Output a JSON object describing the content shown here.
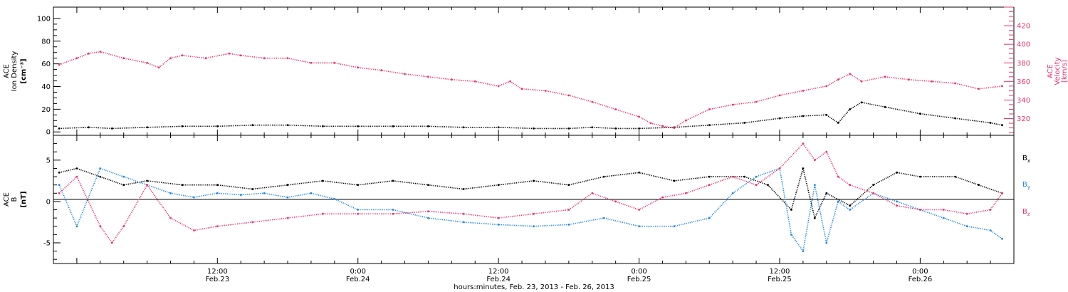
{
  "panel_density": {
    "ylabel_lines": [
      "ACE",
      "Ion Density"
    ],
    "yunit": "[cm⁻³]",
    "yticks": [
      "0",
      "20",
      "40",
      "60",
      "80",
      "100"
    ]
  },
  "panel_velocity": {
    "ylabel_lines": [
      "ACE",
      "Velocity"
    ],
    "yunit": "[km/s]",
    "yticks": [
      "320",
      "340",
      "360",
      "380",
      "400",
      "420"
    ]
  },
  "panel_b": {
    "ylabel_lines": [
      "ACE",
      "B"
    ],
    "yunit": "[nT]",
    "yticks": [
      "-5",
      "0",
      "5"
    ]
  },
  "xaxis": {
    "tick_times": [
      "12:00",
      "0:00",
      "12:00",
      "0:00",
      "12:00",
      "0:00"
    ],
    "tick_dates": [
      "Feb.23",
      "Feb.24",
      "Feb.24",
      "Feb.25",
      "Feb.25",
      "Feb.26"
    ],
    "title": "hours:minutes, Feb. 23, 2013 - Feb. 26, 2013"
  },
  "legend": [
    {
      "label": "B",
      "sub": "x",
      "color": "#000000"
    },
    {
      "label": "B",
      "sub": "y",
      "color": "#1e88e5"
    },
    {
      "label": "B",
      "sub": "z",
      "color": "#e8336b"
    }
  ],
  "colors": {
    "density": "#000000",
    "velocity": "#e8336b",
    "bx": "#000000",
    "by": "#1e88e5",
    "bz": "#e8336b"
  },
  "chart_data": [
    {
      "type": "scatter",
      "x_unit": "hours from 2013-02-23 00:00 UT",
      "xlim": [
        -2,
        80
      ],
      "series": [
        {
          "role": "ion density (left axis, cm^-3)",
          "color": "#000000",
          "ylim": [
            -3,
            110
          ],
          "points": [
            [
              -1.5,
              3
            ],
            [
              1,
              4
            ],
            [
              3,
              3
            ],
            [
              6,
              4
            ],
            [
              9,
              5
            ],
            [
              12,
              5
            ],
            [
              15,
              6
            ],
            [
              18,
              6
            ],
            [
              21,
              5
            ],
            [
              24,
              5
            ],
            [
              27,
              5
            ],
            [
              30,
              5
            ],
            [
              33,
              4
            ],
            [
              36,
              4
            ],
            [
              39,
              3
            ],
            [
              42,
              3
            ],
            [
              44,
              4
            ],
            [
              46,
              3
            ],
            [
              48,
              3
            ],
            [
              51,
              4
            ],
            [
              54,
              6
            ],
            [
              57,
              8
            ],
            [
              60,
              12
            ],
            [
              62,
              14
            ],
            [
              64,
              15
            ],
            [
              65,
              8
            ],
            [
              66,
              20
            ],
            [
              67,
              26
            ],
            [
              69,
              22
            ],
            [
              72,
              16
            ],
            [
              75,
              12
            ],
            [
              78,
              8
            ],
            [
              79,
              6
            ]
          ]
        },
        {
          "role": "ion velocity (right axis, km/s)",
          "color": "#e8336b",
          "ylim": [
            302,
            440
          ],
          "points": [
            [
              -1.5,
              378
            ],
            [
              0,
              385
            ],
            [
              1,
              390
            ],
            [
              2,
              392
            ],
            [
              4,
              385
            ],
            [
              6,
              380
            ],
            [
              7,
              375
            ],
            [
              8,
              385
            ],
            [
              9,
              388
            ],
            [
              11,
              385
            ],
            [
              13,
              390
            ],
            [
              14,
              388
            ],
            [
              16,
              385
            ],
            [
              18,
              385
            ],
            [
              20,
              380
            ],
            [
              22,
              380
            ],
            [
              24,
              375
            ],
            [
              26,
              372
            ],
            [
              28,
              368
            ],
            [
              30,
              365
            ],
            [
              32,
              362
            ],
            [
              34,
              360
            ],
            [
              36,
              355
            ],
            [
              37,
              360
            ],
            [
              38,
              352
            ],
            [
              40,
              350
            ],
            [
              42,
              345
            ],
            [
              44,
              338
            ],
            [
              46,
              330
            ],
            [
              48,
              322
            ],
            [
              49,
              315
            ],
            [
              50,
              312
            ],
            [
              51,
              310
            ],
            [
              52,
              318
            ],
            [
              54,
              330
            ],
            [
              56,
              335
            ],
            [
              58,
              338
            ],
            [
              60,
              345
            ],
            [
              62,
              350
            ],
            [
              64,
              355
            ],
            [
              65,
              362
            ],
            [
              66,
              368
            ],
            [
              67,
              360
            ],
            [
              69,
              365
            ],
            [
              71,
              362
            ],
            [
              73,
              360
            ],
            [
              75,
              358
            ],
            [
              77,
              352
            ],
            [
              79,
              355
            ]
          ]
        }
      ]
    },
    {
      "type": "scatter",
      "x_unit": "hours from 2013-02-23 00:00 UT",
      "xlim": [
        -2,
        80
      ],
      "ylim": [
        -7.5,
        8
      ],
      "y_unit": "nT",
      "series": [
        {
          "name": "Bx",
          "color": "#000000",
          "points": [
            [
              -1.5,
              3.5
            ],
            [
              0,
              4
            ],
            [
              2,
              3
            ],
            [
              4,
              2
            ],
            [
              6,
              2.5
            ],
            [
              9,
              2
            ],
            [
              12,
              2
            ],
            [
              15,
              1.5
            ],
            [
              18,
              2
            ],
            [
              21,
              2.5
            ],
            [
              24,
              2
            ],
            [
              27,
              2.5
            ],
            [
              30,
              2
            ],
            [
              33,
              1.5
            ],
            [
              36,
              2
            ],
            [
              39,
              2.5
            ],
            [
              42,
              2
            ],
            [
              45,
              3
            ],
            [
              48,
              3.5
            ],
            [
              51,
              2.5
            ],
            [
              54,
              3
            ],
            [
              57,
              3
            ],
            [
              59,
              2
            ],
            [
              61,
              -1
            ],
            [
              62,
              4
            ],
            [
              63,
              -2
            ],
            [
              64,
              1
            ],
            [
              66,
              -0.5
            ],
            [
              68,
              2
            ],
            [
              70,
              3.5
            ],
            [
              72,
              3
            ],
            [
              75,
              3
            ],
            [
              77,
              2
            ],
            [
              79,
              1
            ]
          ]
        },
        {
          "name": "By",
          "color": "#1e88e5",
          "points": [
            [
              -1.5,
              2
            ],
            [
              0,
              -3
            ],
            [
              2,
              4
            ],
            [
              4,
              3
            ],
            [
              6,
              2
            ],
            [
              8,
              1
            ],
            [
              10,
              0.5
            ],
            [
              12,
              1
            ],
            [
              14,
              0.8
            ],
            [
              16,
              1
            ],
            [
              18,
              0.5
            ],
            [
              20,
              1
            ],
            [
              22,
              0.3
            ],
            [
              24,
              -1
            ],
            [
              27,
              -1
            ],
            [
              30,
              -2
            ],
            [
              33,
              -2.5
            ],
            [
              36,
              -2.8
            ],
            [
              39,
              -3
            ],
            [
              42,
              -2.8
            ],
            [
              45,
              -2
            ],
            [
              48,
              -3
            ],
            [
              51,
              -3
            ],
            [
              54,
              -2
            ],
            [
              56,
              1
            ],
            [
              58,
              3
            ],
            [
              60,
              4
            ],
            [
              61,
              -4
            ],
            [
              62,
              -6
            ],
            [
              63,
              2
            ],
            [
              64,
              -5
            ],
            [
              65,
              0
            ],
            [
              66,
              -1
            ],
            [
              68,
              1
            ],
            [
              70,
              0
            ],
            [
              72,
              -1
            ],
            [
              74,
              -2
            ],
            [
              76,
              -3
            ],
            [
              78,
              -3.5
            ],
            [
              79,
              -4.5
            ]
          ]
        },
        {
          "name": "Bz",
          "color": "#e8336b",
          "points": [
            [
              -1.5,
              1
            ],
            [
              0,
              3
            ],
            [
              2,
              -3
            ],
            [
              3,
              -5
            ],
            [
              4,
              -3
            ],
            [
              6,
              2
            ],
            [
              8,
              -2
            ],
            [
              10,
              -3.5
            ],
            [
              12,
              -3
            ],
            [
              15,
              -2.5
            ],
            [
              18,
              -2
            ],
            [
              21,
              -1.5
            ],
            [
              24,
              -1.5
            ],
            [
              27,
              -1.5
            ],
            [
              30,
              -1.2
            ],
            [
              33,
              -1.5
            ],
            [
              36,
              -2
            ],
            [
              39,
              -1.5
            ],
            [
              42,
              -1
            ],
            [
              44,
              1
            ],
            [
              46,
              0
            ],
            [
              48,
              -1
            ],
            [
              50,
              0.5
            ],
            [
              52,
              1
            ],
            [
              54,
              2
            ],
            [
              56,
              3
            ],
            [
              58,
              2
            ],
            [
              60,
              4
            ],
            [
              62,
              7
            ],
            [
              63,
              5
            ],
            [
              64,
              6
            ],
            [
              65,
              3
            ],
            [
              66,
              2
            ],
            [
              68,
              1
            ],
            [
              70,
              -0.5
            ],
            [
              72,
              -1
            ],
            [
              74,
              -1
            ],
            [
              76,
              -1.5
            ],
            [
              78,
              -1
            ],
            [
              79,
              1
            ]
          ]
        }
      ]
    }
  ]
}
